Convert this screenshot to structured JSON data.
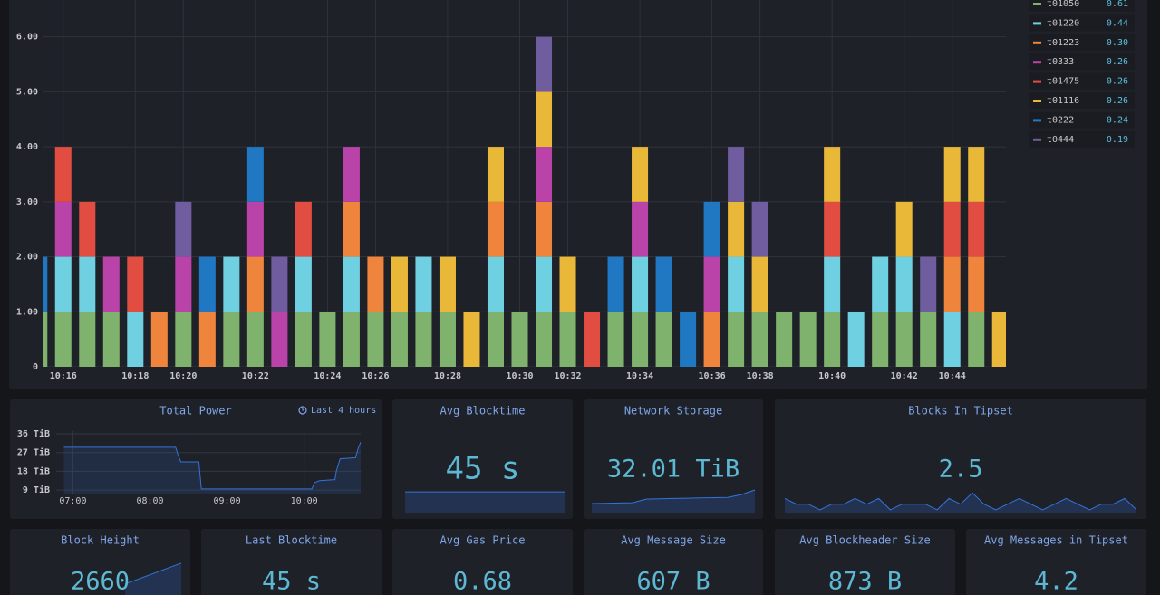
{
  "chart_data": [
    {
      "type": "bar",
      "stacked": true,
      "grid": true,
      "legend": "right",
      "categories": [
        null,
        "10:16",
        null,
        null,
        "10:18",
        null,
        "10:20",
        null,
        null,
        "10:22",
        null,
        null,
        "10:24",
        null,
        "10:26",
        null,
        null,
        "10:28",
        null,
        null,
        "10:30",
        null,
        "10:32",
        null,
        null,
        "10:34",
        null,
        null,
        "10:36",
        null,
        "10:38",
        null,
        null,
        "10:40",
        null,
        null,
        "10:42",
        null,
        "10:44",
        null,
        null
      ],
      "ylim": [
        0,
        6.67
      ],
      "yticks": [
        0,
        {
          "value": 1,
          "label": "1.00"
        },
        {
          "value": 2,
          "label": "2.00"
        },
        {
          "value": 3,
          "label": "3.00"
        },
        {
          "value": 4,
          "label": "4.00"
        },
        {
          "value": 5,
          "label": "5.00"
        },
        {
          "value": 6,
          "label": "6.00"
        }
      ],
      "series": [
        {
          "name": "t01050",
          "color": "#7eb26d",
          "legend_value": "0.61",
          "values": [
            1,
            1,
            1,
            1,
            null,
            null,
            1,
            null,
            1,
            1,
            null,
            1,
            1,
            1,
            1,
            1,
            1,
            1,
            null,
            1,
            1,
            1,
            1,
            null,
            1,
            1,
            1,
            null,
            null,
            1,
            1,
            1,
            1,
            1,
            null,
            1,
            1,
            1,
            null,
            1,
            null
          ]
        },
        {
          "name": "t01220",
          "color": "#6ed0e0",
          "legend_value": "0.44",
          "values": [
            null,
            1,
            1,
            null,
            1,
            null,
            null,
            null,
            1,
            null,
            null,
            1,
            null,
            1,
            null,
            null,
            1,
            null,
            null,
            1,
            null,
            1,
            null,
            null,
            null,
            1,
            null,
            null,
            null,
            1,
            null,
            null,
            null,
            1,
            1,
            1,
            1,
            null,
            1,
            null,
            null
          ]
        },
        {
          "name": "t01223",
          "color": "#ef843c",
          "legend_value": "0.30",
          "values": [
            null,
            null,
            null,
            null,
            null,
            1,
            null,
            1,
            null,
            1,
            null,
            null,
            null,
            1,
            1,
            null,
            null,
            null,
            null,
            1,
            null,
            1,
            null,
            null,
            null,
            null,
            null,
            null,
            1,
            null,
            null,
            null,
            null,
            null,
            null,
            null,
            null,
            null,
            1,
            1,
            null
          ]
        },
        {
          "name": "t0333",
          "color": "#ba43a9",
          "legend_value": "0.26",
          "values": [
            null,
            1,
            null,
            1,
            null,
            null,
            1,
            null,
            null,
            1,
            1,
            null,
            null,
            1,
            null,
            null,
            null,
            null,
            null,
            null,
            null,
            1,
            null,
            null,
            null,
            1,
            null,
            null,
            1,
            null,
            null,
            null,
            null,
            null,
            null,
            null,
            null,
            null,
            null,
            null,
            null
          ]
        },
        {
          "name": "t01475",
          "color": "#e24d42",
          "legend_value": "0.26",
          "values": [
            null,
            1,
            1,
            null,
            1,
            null,
            null,
            null,
            null,
            null,
            null,
            1,
            null,
            null,
            null,
            null,
            null,
            null,
            null,
            null,
            null,
            null,
            null,
            1,
            null,
            null,
            null,
            null,
            null,
            null,
            null,
            null,
            null,
            1,
            null,
            null,
            null,
            null,
            1,
            1,
            null
          ]
        },
        {
          "name": "t01116",
          "color": "#eab839",
          "legend_value": "0.26",
          "values": [
            null,
            null,
            null,
            null,
            null,
            null,
            null,
            null,
            null,
            null,
            null,
            null,
            null,
            null,
            null,
            1,
            null,
            1,
            1,
            1,
            null,
            1,
            1,
            null,
            null,
            1,
            null,
            null,
            null,
            1,
            1,
            null,
            null,
            1,
            null,
            null,
            1,
            null,
            1,
            1,
            1
          ]
        },
        {
          "name": "t0222",
          "color": "#1f78c1",
          "legend_value": "0.24",
          "values": [
            1,
            null,
            null,
            null,
            null,
            null,
            null,
            1,
            null,
            1,
            null,
            null,
            null,
            null,
            null,
            null,
            null,
            null,
            null,
            null,
            null,
            null,
            null,
            null,
            1,
            null,
            1,
            1,
            1,
            null,
            null,
            null,
            null,
            null,
            null,
            null,
            null,
            null,
            null,
            null,
            null
          ]
        },
        {
          "name": "t0444",
          "color": "#705da0",
          "legend_value": "0.19",
          "values": [
            null,
            null,
            null,
            null,
            null,
            null,
            1,
            null,
            null,
            null,
            1,
            null,
            null,
            null,
            null,
            null,
            null,
            null,
            null,
            null,
            null,
            1,
            null,
            null,
            null,
            null,
            null,
            null,
            null,
            1,
            1,
            null,
            null,
            null,
            null,
            null,
            null,
            1,
            null,
            null,
            null
          ]
        }
      ]
    },
    {
      "type": "line",
      "title": "Total Power",
      "annotation": "Last 4 hours",
      "color": "#3274d9",
      "grid": true,
      "x": [
        "06:53",
        "08:20",
        "08:22",
        "08:24",
        "08:38",
        "08:40",
        "10:06",
        "10:08",
        "10:12",
        "10:24",
        "10:25",
        "10:28",
        "10:40",
        "10:42",
        "10:44"
      ],
      "values": [
        29.5,
        29.5,
        25.5,
        22.5,
        22.5,
        9.5,
        9.5,
        12.5,
        13.5,
        14,
        18,
        24,
        24.5,
        29,
        32
      ],
      "xlim": [
        "06:47",
        "10:44"
      ],
      "xticks": [
        "07:00",
        "08:00",
        "09:00",
        "10:00"
      ],
      "ylim": [
        7.3,
        37.3
      ],
      "yticks": [
        {
          "value": 9,
          "label": "9 TiB"
        },
        {
          "value": 18,
          "label": "18 TiB"
        },
        {
          "value": 27,
          "label": "27 TiB"
        },
        {
          "value": 36,
          "label": "36 TiB"
        }
      ]
    }
  ],
  "panels": [
    {
      "title": "Avg Blocktime",
      "value": "45 s",
      "sparkline": {
        "color": "#3274d9",
        "ylim": [
          0,
          55
        ],
        "values": [
          45,
          45,
          45,
          45,
          45,
          45,
          45,
          45
        ]
      }
    },
    {
      "title": "Network Storage",
      "value": "32.01 TiB",
      "sparkline": {
        "color": "#3274d9",
        "ylim": [
          28,
          32.5
        ],
        "values": [
          29.6,
          29.65,
          29.7,
          29.75,
          30.4,
          30.45,
          30.5,
          30.55,
          30.6,
          30.65,
          30.7,
          31.2,
          32.01
        ]
      }
    },
    {
      "title": "Blocks In Tipset",
      "value": "2.5",
      "sparkline": {
        "color": "#3274d9",
        "ylim": [
          0.5,
          5
        ],
        "values": [
          3,
          2,
          2,
          1,
          2,
          2,
          3,
          2,
          3,
          1,
          2,
          2,
          2,
          1,
          3,
          2,
          4,
          2,
          1,
          2,
          3,
          2,
          1,
          2,
          3,
          2,
          1,
          2,
          2,
          3,
          1
        ]
      }
    },
    {
      "title": "Block Height",
      "value": "2660",
      "sparkline": {
        "color": "#3274d9",
        "ylim": [
          2600,
          2665
        ],
        "values": [
          2630,
          2660
        ]
      }
    },
    {
      "title": "Last Blocktime",
      "value": "45 s"
    },
    {
      "title": "Avg Gas Price",
      "value": "0.68"
    },
    {
      "title": "Avg Message Size",
      "value": "607 B"
    },
    {
      "title": "Avg Blockheader Size",
      "value": "873 B"
    },
    {
      "title": "Avg Messages in Tipset",
      "value": "4.2"
    }
  ]
}
